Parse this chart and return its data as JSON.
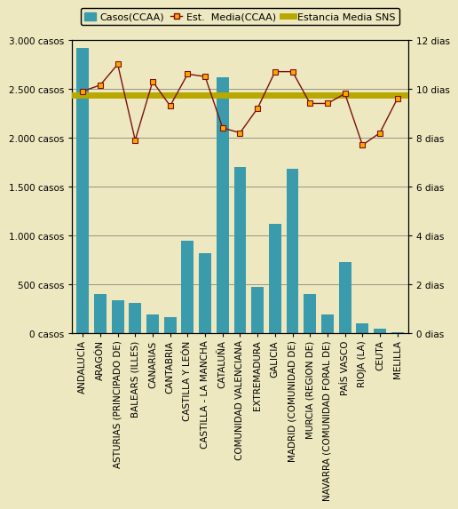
{
  "categories": [
    "ANDALUCÍA",
    "ARAGÓN",
    "ASTURIAS (PRINCIPADO DE)",
    "BALEARS (ILLES)",
    "CANARIAS",
    "CANTABRIA",
    "CASTILLA Y LEÓN",
    "CASTILLA - LA MANCHA",
    "CATALUÑA",
    "COMUNIDAD VALENCIANA",
    "EXTREMADURA",
    "GALICIA",
    "MADRID (COMUNIDAD DE)",
    "MURCIA (REGION DE)",
    "NAVARRA (COMUNIDAD FORAL DE)",
    "PAÍS VASCO",
    "RIOJA (LA)",
    "CEUTA",
    "MELILLA"
  ],
  "bar_values": [
    2920,
    400,
    340,
    310,
    195,
    165,
    950,
    820,
    2620,
    1700,
    480,
    1120,
    1680,
    400,
    195,
    730,
    105,
    45,
    15
  ],
  "line_values": [
    9.9,
    10.15,
    11.0,
    7.9,
    10.3,
    9.3,
    10.6,
    10.5,
    8.4,
    8.2,
    9.2,
    10.7,
    10.7,
    9.4,
    9.4,
    9.8,
    7.7,
    8.2,
    9.6
  ],
  "sns_line_value": 9.75,
  "bar_color": "#3a9bad",
  "line_color": "#7B1010",
  "line_marker_facecolor": "#FFA500",
  "line_marker_edgecolor": "#7B1010",
  "sns_line_color": "#B8A800",
  "background_color": "#EDE8C0",
  "fig_facecolor": "#EDE8C0",
  "ylim_left": [
    0,
    3000
  ],
  "ylim_right": [
    0,
    12
  ],
  "yticks_left": [
    0,
    500,
    1000,
    1500,
    2000,
    2500,
    3000
  ],
  "ytick_labels_left": [
    "0 casos",
    "500 casos",
    "1.000 casos",
    "1.500 casos",
    "2.000 casos",
    "2.500 casos",
    "3.000 casos"
  ],
  "yticks_right": [
    0,
    2,
    4,
    6,
    8,
    10,
    12
  ],
  "ytick_labels_right": [
    "0 dias",
    "2 dias",
    "4 dias",
    "6 dias",
    "8 dias",
    "10 dias",
    "12 dias"
  ],
  "legend_bar_label": "Casos(CCAA)",
  "legend_line_label": "Est.  Media(CCAA)",
  "legend_sns_label": "Estancia Media SNS",
  "grid_color": "#555555",
  "font_family": "sans-serif",
  "tick_fontsize": 7.5,
  "legend_fontsize": 8.0
}
